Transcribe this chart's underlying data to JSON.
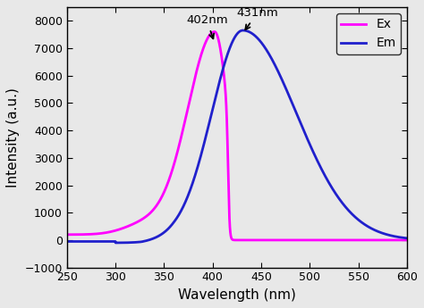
{
  "title": "",
  "xlabel": "Wavelength (nm)",
  "ylabel": "Intensity (a.u.)",
  "xlim": [
    250,
    600
  ],
  "ylim": [
    -1000,
    8500
  ],
  "yticks": [
    -1000,
    0,
    1000,
    2000,
    3000,
    4000,
    5000,
    6000,
    7000,
    8000
  ],
  "xticks": [
    250,
    300,
    350,
    400,
    450,
    500,
    550,
    600
  ],
  "ex_color": "#FF00FF",
  "em_color": "#2020CC",
  "ex_peak_x": 402,
  "ex_peak_y": 7400,
  "em_peak_x": 431,
  "em_peak_y": 7650,
  "annotation_ex": "402nm",
  "annotation_em": "431nm",
  "legend_ex": "Ex",
  "legend_em": "Em",
  "linewidth": 2.0,
  "background_color": "#f0f0f0"
}
